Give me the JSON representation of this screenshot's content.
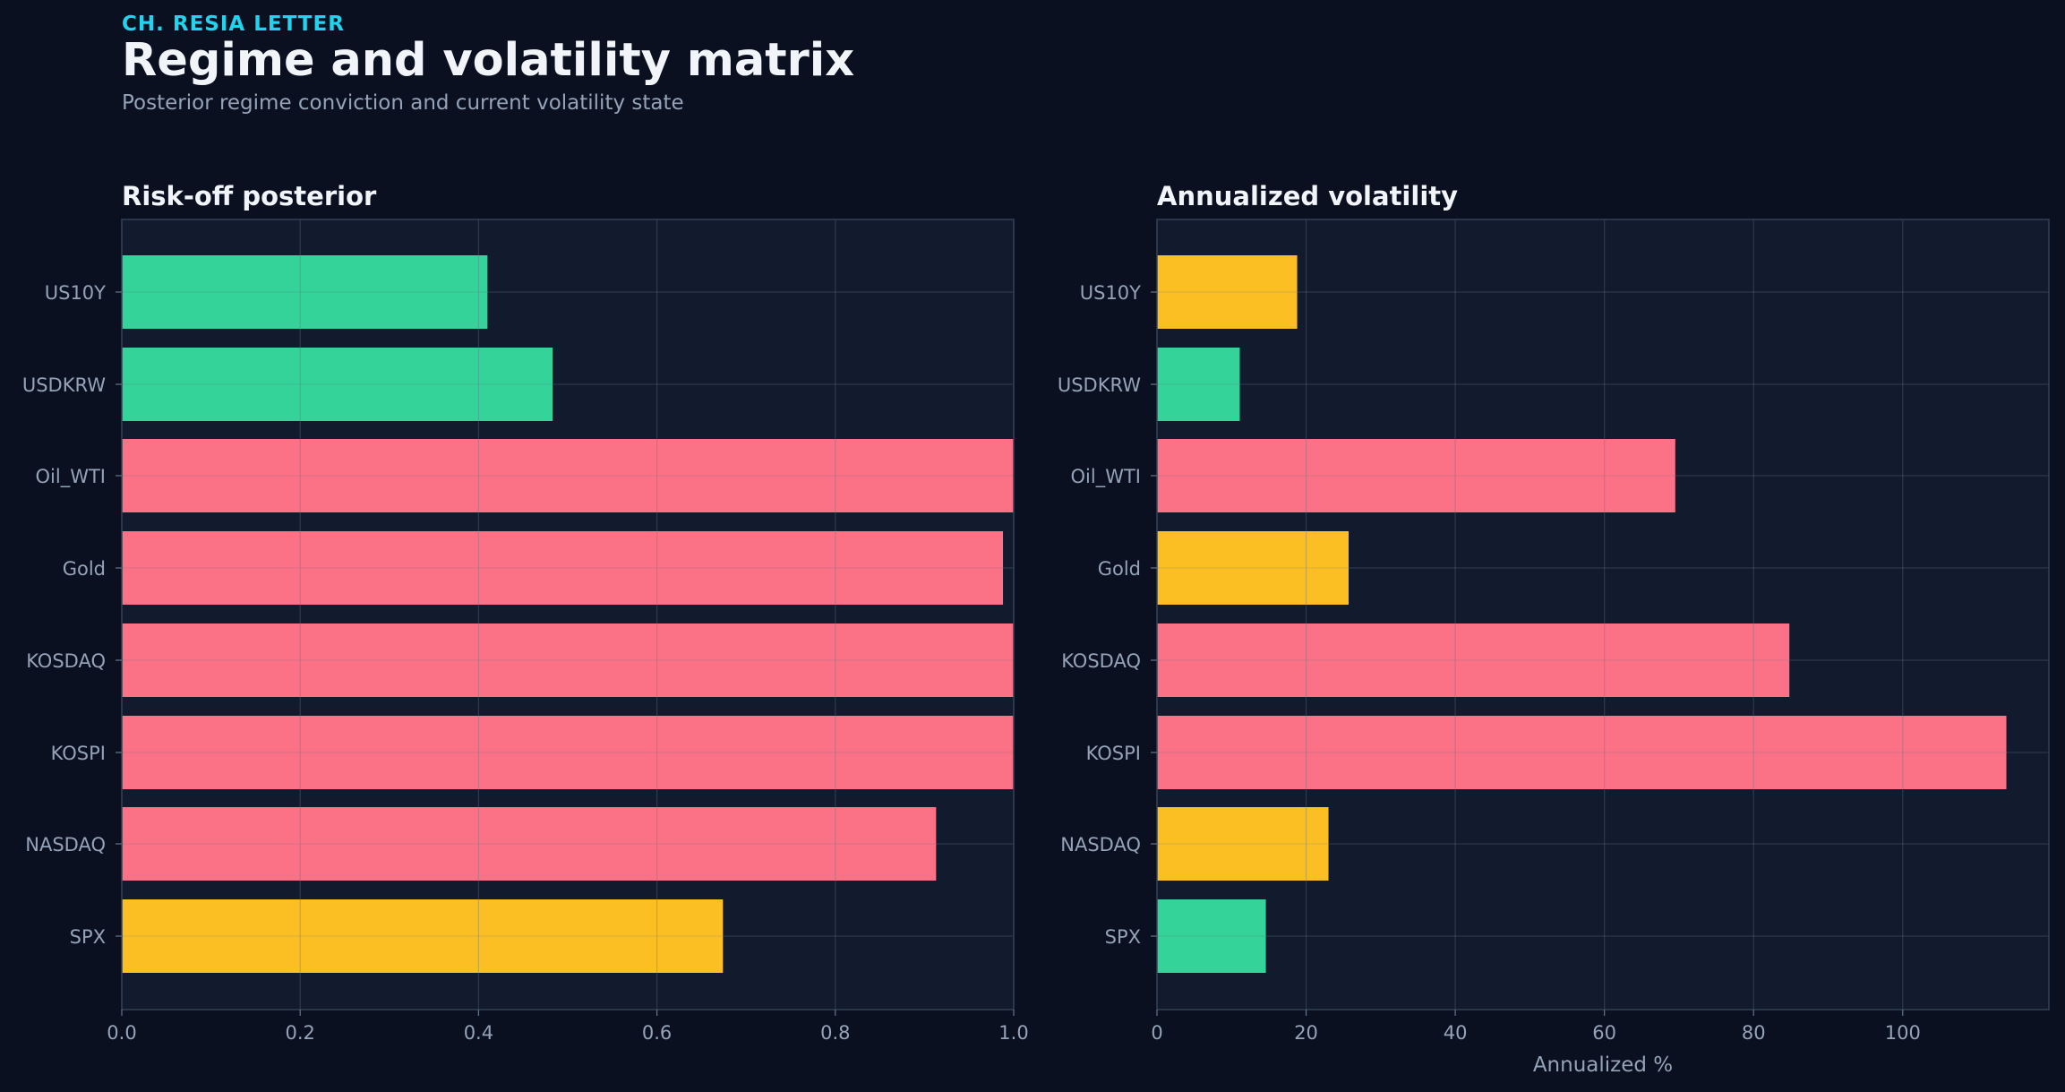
{
  "header": {
    "kicker": "CH. RESIA LETTER",
    "title": "Regime and volatility matrix",
    "subtitle": "Posterior regime conviction and current volatility state"
  },
  "colors": {
    "background": "#0b1020",
    "panel": "#121a2e",
    "green": "#34d399",
    "red": "#fb7185",
    "yellow": "#fbbf24",
    "kicker": "#22d3ee",
    "text": "#f1f5f9",
    "muted": "#94a3b8"
  },
  "chart_data": [
    {
      "type": "bar",
      "orientation": "horizontal",
      "title": "Risk-off posterior",
      "xlabel": "",
      "categories": [
        "US10Y",
        "USDKRW",
        "Oil_WTI",
        "Gold",
        "KOSDAQ",
        "KOSPI",
        "NASDAQ",
        "SPX"
      ],
      "values": [
        0.41,
        0.483,
        1.0,
        0.988,
        1.0,
        1.0,
        0.913,
        0.674
      ],
      "bar_colors": [
        "green",
        "green",
        "red",
        "red",
        "red",
        "red",
        "red",
        "yellow"
      ],
      "xlim": [
        0,
        1.0
      ],
      "xticks": [
        "0.0",
        "0.2",
        "0.4",
        "0.6",
        "0.8",
        "1.0"
      ],
      "xtick_values": [
        0,
        0.2,
        0.4,
        0.6,
        0.8,
        1.0
      ],
      "grid": true
    },
    {
      "type": "bar",
      "orientation": "horizontal",
      "title": "Annualized volatility",
      "xlabel": "Annualized %",
      "categories": [
        "US10Y",
        "USDKRW",
        "Oil_WTI",
        "Gold",
        "KOSDAQ",
        "KOSPI",
        "NASDAQ",
        "SPX"
      ],
      "values": [
        18.8,
        11.1,
        69.5,
        25.7,
        84.8,
        113.9,
        23.0,
        14.6
      ],
      "bar_colors": [
        "yellow",
        "green",
        "red",
        "yellow",
        "red",
        "red",
        "yellow",
        "green"
      ],
      "xlim": [
        0,
        119.6
      ],
      "xticks": [
        "0",
        "20",
        "40",
        "60",
        "80",
        "100"
      ],
      "xtick_values": [
        0,
        20,
        40,
        60,
        80,
        100
      ],
      "grid": true
    }
  ]
}
